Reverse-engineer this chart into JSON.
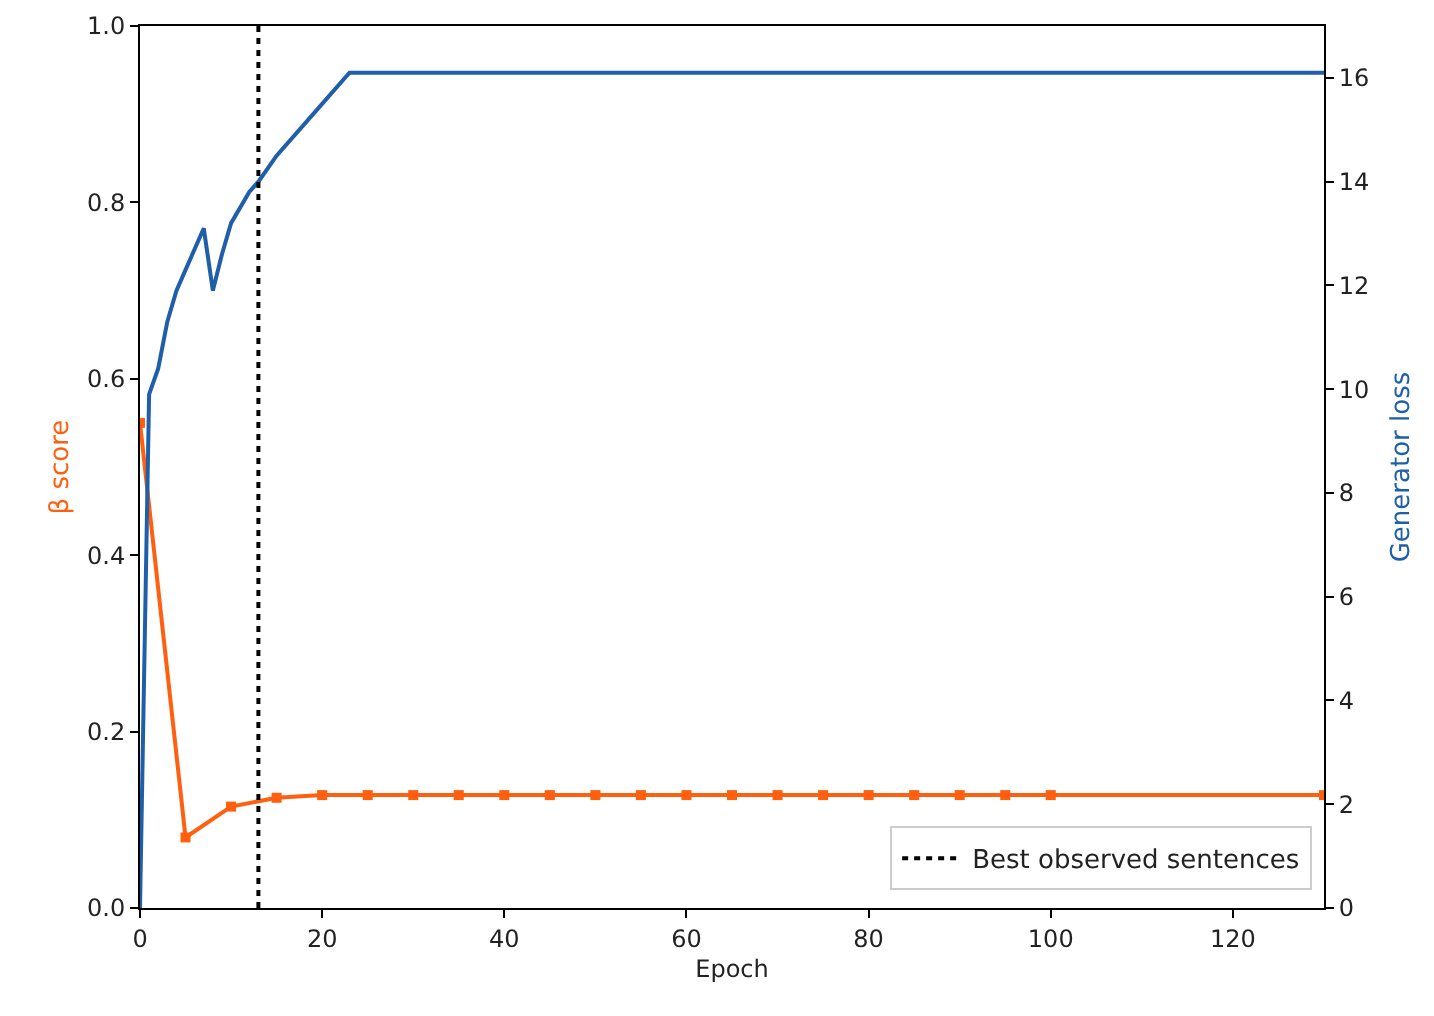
{
  "chart_data": {
    "type": "line",
    "xlabel": "Epoch",
    "ylabel": "β score",
    "y2label": "Generator loss",
    "xlim": [
      0,
      130
    ],
    "xticks": [
      0,
      20,
      40,
      60,
      80,
      100,
      120
    ],
    "ylim": [
      0,
      1
    ],
    "yticks": [
      {
        "value": 0,
        "label": "0.0"
      },
      {
        "value": 0.2,
        "label": "0.2"
      },
      {
        "value": 0.4,
        "label": "0.4"
      },
      {
        "value": 0.6,
        "label": "0.6"
      },
      {
        "value": 0.8,
        "label": "0.8"
      },
      {
        "value": 1,
        "label": "1.0"
      }
    ],
    "y2lim": [
      0,
      17
    ],
    "y2ticks": [
      0,
      2,
      4,
      6,
      8,
      10,
      12,
      14,
      16
    ],
    "grid": false,
    "legend": "bottom right",
    "series": [
      {
        "color": "#ff5f0f",
        "marker": "square",
        "x": [
          0,
          5,
          10,
          15,
          20,
          25,
          30,
          35,
          40,
          45,
          50,
          55,
          60,
          65,
          70,
          75,
          80,
          85,
          90,
          95,
          100,
          130
        ],
        "values": [
          0.55,
          0.08,
          0.115,
          0.125,
          0.128,
          0.128,
          0.128,
          0.128,
          0.128,
          0.128,
          0.128,
          0.128,
          0.128,
          0.128,
          0.128,
          0.128,
          0.128,
          0.128,
          0.128,
          0.128,
          0.128,
          0.128
        ]
      },
      {
        "color": "#1f5faa",
        "marker": "none",
        "axis": "y2",
        "x": [
          0,
          1,
          2,
          3,
          4,
          5,
          7,
          8,
          9,
          10,
          12,
          13,
          15,
          20,
          23,
          130
        ],
        "values": [
          0,
          9.9,
          10.4,
          11.3,
          11.9,
          12.3,
          13.1,
          11.9,
          12.6,
          13.2,
          13.8,
          14.0,
          14.5,
          15.5,
          16.1,
          16.1
        ]
      }
    ],
    "ref_lines": [
      {
        "axis": "x",
        "value": 13,
        "label": "Best observed sentences",
        "color": "#000000",
        "line_style": "dotted"
      }
    ]
  }
}
